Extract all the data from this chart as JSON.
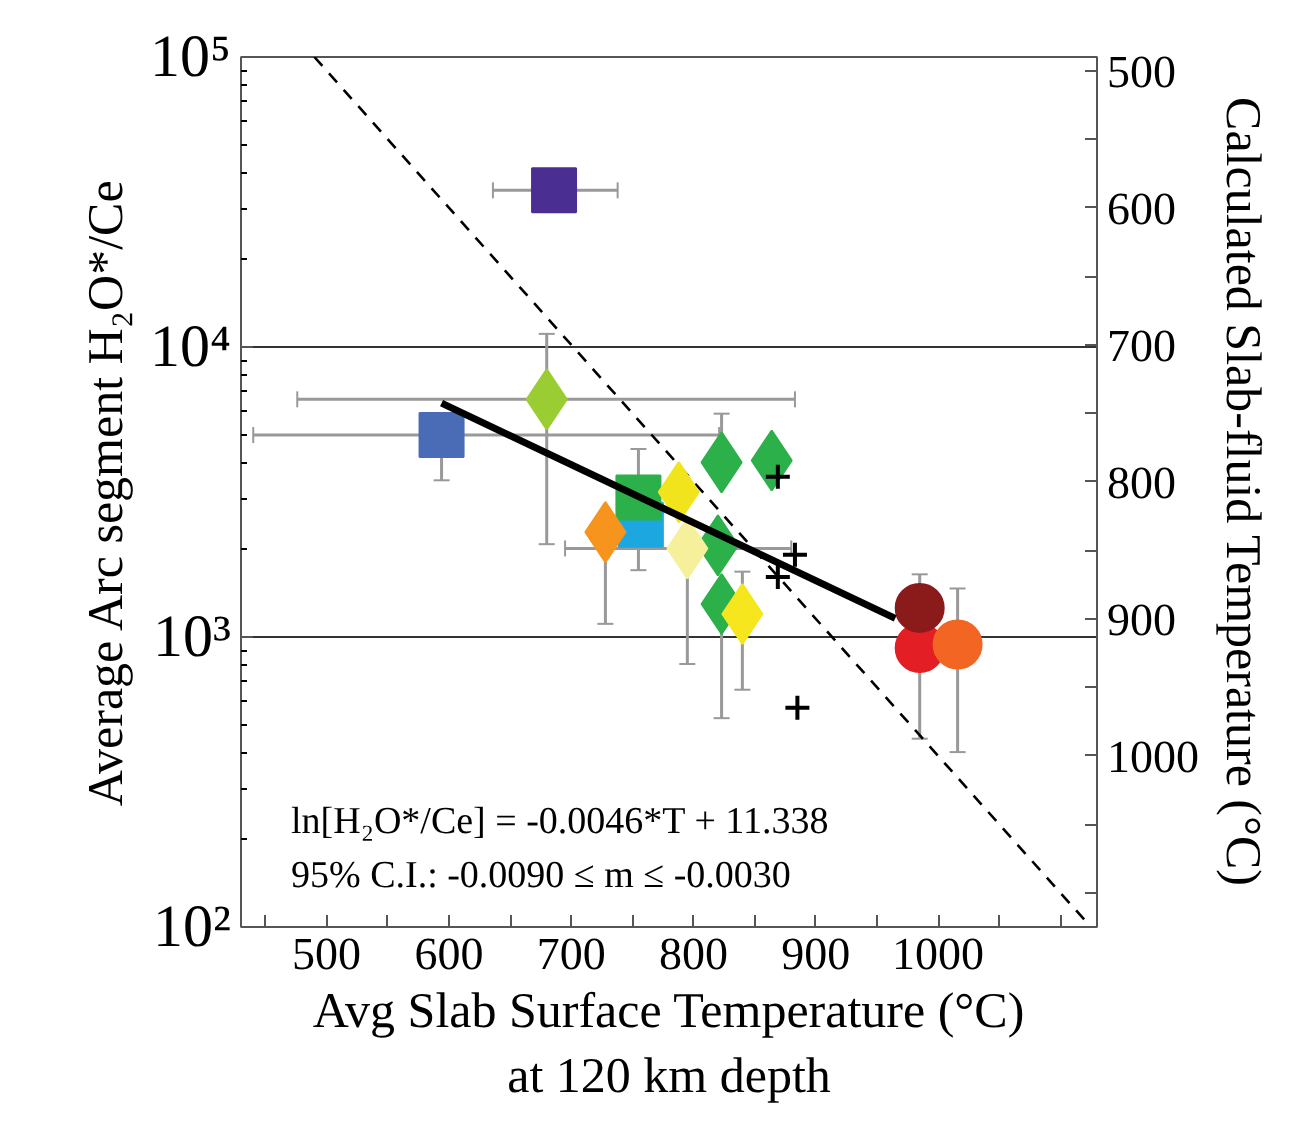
{
  "chart_data": {
    "type": "scatter",
    "xlabel": "Avg Slab Surface Temperature (°C)\nat 120 km depth",
    "ylabel": "Average Arc segment H₂O*/Ce",
    "y2label": "Calculated Slab-fluid Temperature (°C)",
    "log": "y",
    "grid": "y",
    "xlim": [
      430,
      1130
    ],
    "xticks": [
      {
        "value": 450,
        "label": null
      },
      500,
      {
        "value": 550,
        "label": null
      },
      600,
      {
        "value": 650,
        "label": null
      },
      700,
      {
        "value": 750,
        "label": null
      },
      800,
      {
        "value": 850,
        "label": null
      },
      900,
      {
        "value": 950,
        "label": null
      },
      1000,
      {
        "value": 1050,
        "label": null
      },
      {
        "value": 1100,
        "label": null
      }
    ],
    "ylim": [
      100,
      100000
    ],
    "yticks": [
      {
        "value": 100,
        "label": "10²"
      },
      {
        "value": 1000,
        "label": "10³"
      },
      {
        "value": 10000,
        "label": "10⁴"
      },
      {
        "value": 100000,
        "label": "10⁵"
      }
    ],
    "y2lim": [
      1125,
      490
    ],
    "y2ticks": [
      500,
      {
        "value": 550,
        "label": null
      },
      600,
      {
        "value": 650,
        "label": null
      },
      700,
      {
        "value": 750,
        "label": null
      },
      800,
      {
        "value": 850,
        "label": null
      },
      900,
      {
        "value": 950,
        "label": null
      },
      1000,
      {
        "value": 1050,
        "label": null
      },
      {
        "value": 1100,
        "label": null
      }
    ],
    "annotations": [
      "ln[H₂O*/Ce] = -0.0046*T + 11.338",
      "95% C.I.: -0.0090 ≤ m ≤ -0.0030"
    ],
    "series": [
      {
        "type": "line",
        "axis": "y2",
        "color": "#000000",
        "line_style": "dashed",
        "x": [
          490,
          1125
        ],
        "values": [
          490,
          1125
        ]
      },
      {
        "type": "scatter",
        "marker": "square",
        "color": "#4b2e91",
        "x": [
          686
        ],
        "values": [
          34700
        ],
        "xerrors": [
          [
            636,
            738
          ]
        ]
      },
      {
        "type": "scatter",
        "marker": "square",
        "color": "#4a6bb6",
        "x": [
          594
        ],
        "values": [
          4970
        ],
        "errors": [
          [
            3470,
            4970
          ]
        ],
        "xerrors": [
          [
            440,
            821
          ]
        ]
      },
      {
        "type": "scatter",
        "marker": "diamond",
        "color": "#9acd32",
        "x": [
          680
        ],
        "values": [
          6600
        ],
        "errors": [
          [
            2090,
            11100
          ]
        ],
        "xerrors": [
          [
            476,
            883
          ]
        ]
      },
      {
        "type": "scatter",
        "marker": "square",
        "color": "#1da7e0",
        "x": [
          757
        ],
        "values": [
          2440
        ]
      },
      {
        "type": "scatter",
        "marker": "square",
        "color": "#2cb04a",
        "x": [
          755
        ],
        "values": [
          3030
        ],
        "errors": [
          [
            1700,
            4450
          ]
        ]
      },
      {
        "type": "scatter",
        "marker": "diamond",
        "color": "#f7941d",
        "x": [
          728
        ],
        "values": [
          2300
        ],
        "errors": [
          [
            1110,
            2300
          ]
        ]
      },
      {
        "marker": "diamond",
        "color": "#2cb04a",
        "x": [
          823,
          864,
          820,
          823
        ],
        "values": [
          4000,
          4060,
          2070,
          1300
        ],
        "errors": [
          [
            4000,
            5890
          ],
          null,
          null,
          [
            525,
            1300
          ]
        ]
      },
      {
        "type": "scatter",
        "marker": "diamond",
        "color": "#f2e41c",
        "x": [
          788
        ],
        "values": [
          3160
        ]
      },
      {
        "type": "scatter",
        "marker": "diamond",
        "color": "#f7f09a",
        "x": [
          795
        ],
        "values": [
          2020
        ],
        "errors": [
          [
            807,
            2020
          ]
        ],
        "xerrors": [
          [
            695,
            880
          ]
        ]
      },
      {
        "type": "scatter",
        "marker": "diamond",
        "color": "#f5e61e",
        "x": [
          840
        ],
        "values": [
          1200
        ],
        "errors": [
          [
            658,
            1680
          ]
        ]
      },
      {
        "type": "scatter",
        "marker": "cross",
        "color": "#000000",
        "x": [
          869,
          883,
          869,
          885
        ],
        "values": [
          3570,
          1920,
          1610,
          570
        ]
      },
      {
        "type": "scatter",
        "marker": "circle",
        "color": "#e31e24",
        "x": [
          985
        ],
        "values": [
          916
        ],
        "errors": [
          [
            446,
            916
          ]
        ]
      },
      {
        "type": "scatter",
        "marker": "circle",
        "color": "#f26522",
        "x": [
          1016
        ],
        "values": [
          942
        ],
        "errors": [
          [
            401,
            1470
          ]
        ]
      },
      {
        "type": "scatter",
        "marker": "circle",
        "color": "#8b1a1a",
        "x": [
          985
        ],
        "values": [
          1260
        ],
        "errors": [
          [
            1260,
            1645
          ]
        ]
      },
      {
        "type": "line",
        "color": "#000000",
        "line_style": "solid",
        "x": [
          594,
          965
        ],
        "values": [
          6400,
          1160
        ]
      }
    ]
  }
}
